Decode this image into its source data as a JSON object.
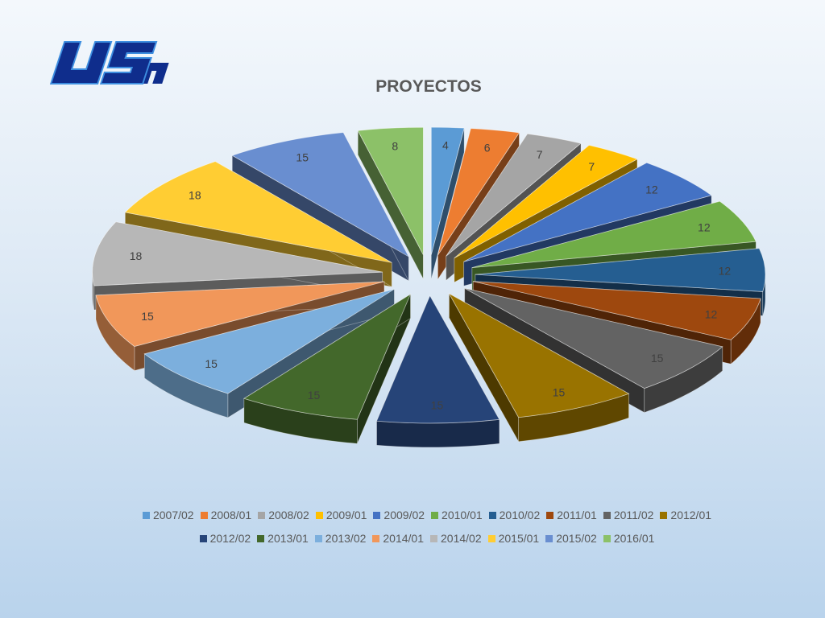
{
  "logo_text": "USM",
  "chart_data": {
    "type": "pie",
    "title": "PROYECTOS",
    "legend_position": "bottom",
    "categories": [
      "2007/02",
      "2008/01",
      "2008/02",
      "2009/01",
      "2009/02",
      "2010/01",
      "2010/02",
      "2011/01",
      "2011/02",
      "2012/01",
      "2012/02",
      "2013/01",
      "2013/02",
      "2014/01",
      "2014/02",
      "2015/01",
      "2015/02",
      "2016/01"
    ],
    "values": [
      4,
      6,
      7,
      7,
      12,
      12,
      12,
      12,
      15,
      15,
      15,
      15,
      15,
      15,
      18,
      18,
      15,
      8
    ],
    "colors": [
      "#5b9bd5",
      "#ed7d31",
      "#a5a5a5",
      "#ffc000",
      "#4472c4",
      "#70ad47",
      "#255e91",
      "#9e480e",
      "#636363",
      "#997300",
      "#264478",
      "#43682b",
      "#7cafdd",
      "#f1975a",
      "#b7b7b7",
      "#ffcd33",
      "#698ed0",
      "#8cc168"
    ]
  }
}
